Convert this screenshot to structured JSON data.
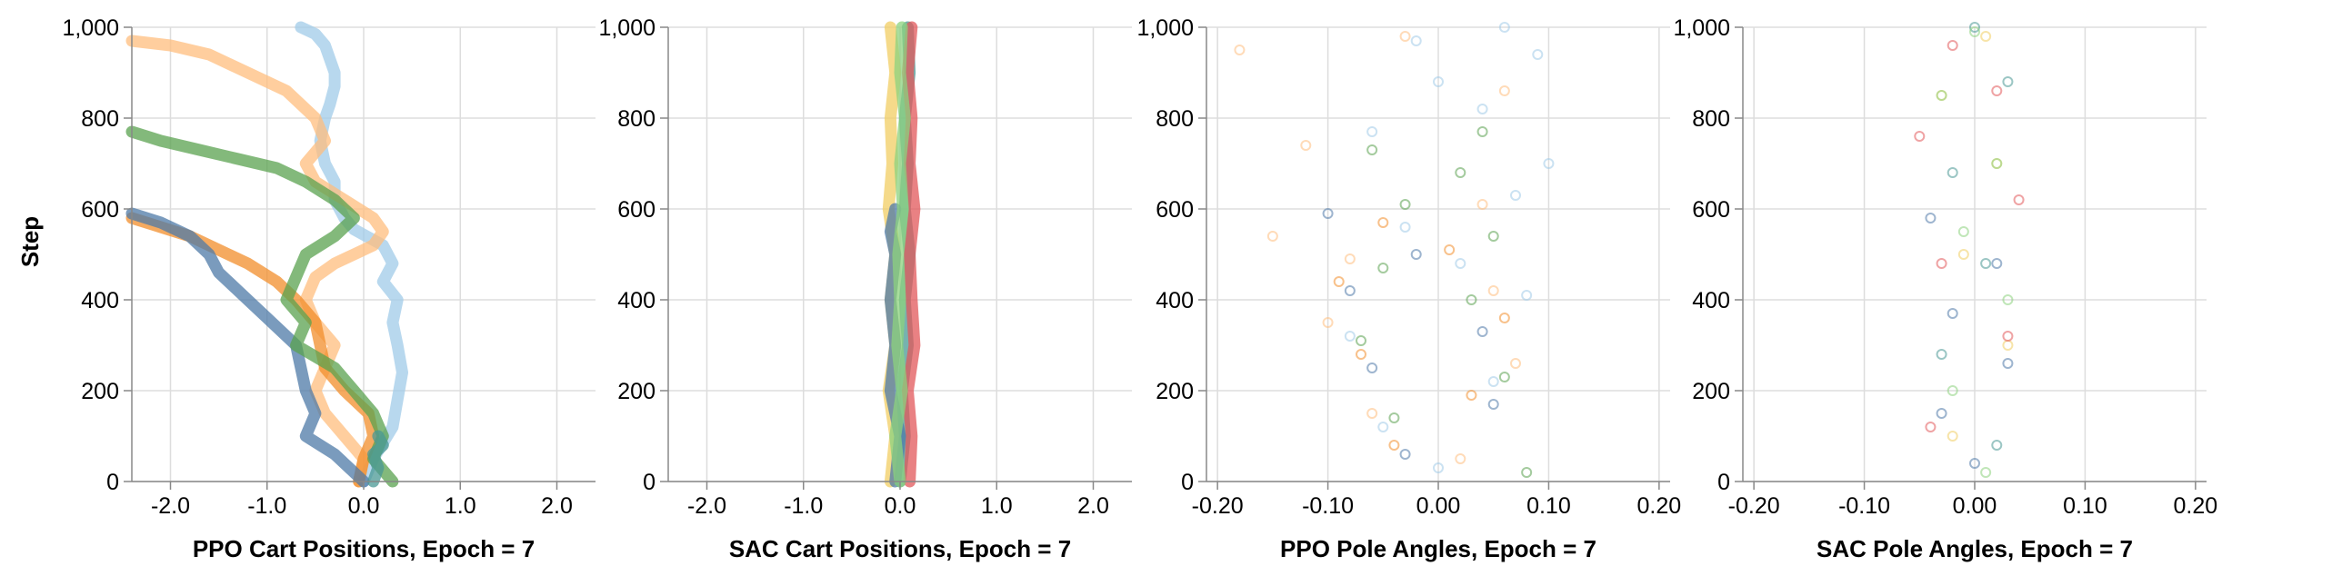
{
  "colors": {
    "blue": "#4e79a7",
    "light_blue": "#a0cbe8",
    "orange": "#f28e2b",
    "light_orange": "#ffbe7d",
    "green": "#59a14f",
    "light_green": "#8cd17d",
    "red": "#e15759",
    "teal": "#499894",
    "yellow": "#f1ce63"
  },
  "y_axis_title": "Step",
  "chart_data": [
    {
      "type": "line",
      "title": "PPO Cart Positions, Epoch = 7",
      "xlabel": "PPO Cart Positions, Epoch = 7",
      "ylabel": "Step",
      "xlim": [
        -2.4,
        2.4
      ],
      "ylim": [
        0,
        1000
      ],
      "x_ticks": [
        "-2.0",
        "-1.0",
        "0.0",
        "1.0",
        "2.0"
      ],
      "x_tick_values": [
        -2,
        -1,
        0,
        1,
        2
      ],
      "y_ticks": [
        "0",
        "200",
        "400",
        "600",
        "800",
        "1,000"
      ],
      "y_tick_values": [
        0,
        200,
        400,
        600,
        800,
        1000
      ],
      "grid": true,
      "series": [
        {
          "color": "#a0cbe8",
          "x": [
            0.0,
            0.1,
            0.3,
            0.35,
            0.4,
            0.35,
            0.3,
            0.35,
            0.2,
            0.3,
            0.2,
            -0.1,
            -0.2,
            -0.3,
            -0.3,
            -0.4,
            -0.45,
            -0.4,
            -0.35,
            -0.3,
            -0.3,
            -0.35,
            -0.4,
            -0.5,
            -0.6,
            -0.65
          ],
          "y": [
            0,
            50,
            120,
            180,
            240,
            300,
            350,
            400,
            440,
            480,
            520,
            555,
            580,
            620,
            660,
            700,
            750,
            800,
            830,
            870,
            900,
            930,
            960,
            985,
            995,
            1000
          ]
        },
        {
          "color": "#ffbe7d",
          "x": [
            -0.05,
            0.0,
            -0.2,
            -0.4,
            -0.5,
            -0.4,
            -0.3,
            -0.5,
            -0.6,
            -0.5,
            -0.3,
            -0.1,
            0.1,
            0.2,
            0.1,
            -0.2,
            -0.5,
            -0.6,
            -0.4,
            -0.5,
            -0.8,
            -1.2,
            -1.6,
            -2.0,
            -2.4
          ],
          "y": [
            0,
            50,
            100,
            150,
            200,
            250,
            300,
            350,
            400,
            450,
            480,
            500,
            520,
            550,
            580,
            620,
            660,
            700,
            750,
            800,
            860,
            900,
            940,
            960,
            970
          ]
        },
        {
          "color": "#f28e2b",
          "x": [
            -0.05,
            0.0,
            0.1,
            0.05,
            -0.2,
            -0.4,
            -0.45,
            -0.5,
            -0.7,
            -0.9,
            -1.2,
            -1.5,
            -1.8,
            -2.1,
            -2.4
          ],
          "y": [
            0,
            50,
            100,
            150,
            200,
            250,
            300,
            350,
            400,
            440,
            480,
            510,
            540,
            560,
            580
          ]
        },
        {
          "color": "#4e79a7",
          "x": [
            0.0,
            -0.3,
            -0.6,
            -0.5,
            -0.6,
            -0.7,
            -1.0,
            -1.2,
            -1.5,
            -1.6,
            -1.8,
            -2.1,
            -2.4
          ],
          "y": [
            0,
            60,
            100,
            150,
            200,
            300,
            360,
            400,
            460,
            500,
            540,
            570,
            590
          ]
        },
        {
          "color": "#59a14f",
          "x": [
            0.3,
            0.1,
            0.2,
            0.1,
            -0.1,
            -0.3,
            -0.7,
            -0.6,
            -0.8,
            -0.7,
            -0.6,
            -0.3,
            -0.1,
            -0.3,
            -0.6,
            -0.9,
            -1.3,
            -1.7,
            -2.1,
            -2.4
          ],
          "y": [
            0,
            50,
            100,
            150,
            200,
            250,
            300,
            350,
            400,
            450,
            500,
            540,
            580,
            620,
            660,
            690,
            710,
            730,
            750,
            770
          ]
        },
        {
          "color": "#499894",
          "x": [
            0.1,
            0.15,
            0.1,
            0.2,
            0.15
          ],
          "y": [
            0,
            30,
            60,
            80,
            100
          ]
        }
      ]
    },
    {
      "type": "line",
      "title": "SAC Cart Positions, Epoch = 7",
      "xlabel": "SAC Cart Positions, Epoch = 7",
      "ylabel": "",
      "xlim": [
        -2.4,
        2.4
      ],
      "ylim": [
        0,
        1000
      ],
      "x_ticks": [
        "-2.0",
        "-1.0",
        "0.0",
        "1.0",
        "2.0"
      ],
      "x_tick_values": [
        -2,
        -1,
        0,
        1,
        2
      ],
      "y_ticks": [
        "0",
        "200",
        "400",
        "600",
        "800",
        "1,000"
      ],
      "y_tick_values": [
        0,
        200,
        400,
        600,
        800,
        1000
      ],
      "grid": true,
      "series": [
        {
          "color": "#f1ce63",
          "x": [
            -0.1,
            -0.05,
            -0.12,
            -0.05,
            -0.1,
            -0.05,
            -0.12,
            -0.08,
            -0.1,
            -0.05,
            -0.1
          ],
          "y": [
            0,
            100,
            200,
            300,
            400,
            500,
            600,
            700,
            800,
            900,
            1000
          ]
        },
        {
          "color": "#499894",
          "x": [
            0.0,
            0.05,
            0.02,
            0.08,
            0.05,
            0.1,
            0.05,
            0.08,
            0.05,
            0.1,
            0.08
          ],
          "y": [
            0,
            100,
            200,
            300,
            400,
            500,
            600,
            700,
            800,
            900,
            1000
          ]
        },
        {
          "color": "#e15759",
          "x": [
            0.1,
            0.12,
            0.08,
            0.15,
            0.12,
            0.1,
            0.15,
            0.1,
            0.12,
            0.08,
            0.12
          ],
          "y": [
            0,
            100,
            200,
            300,
            400,
            500,
            600,
            700,
            800,
            900,
            1000
          ]
        },
        {
          "color": "#4e79a7",
          "x": [
            -0.05,
            0.0,
            -0.1,
            -0.05,
            -0.1,
            -0.05,
            -0.1,
            -0.05
          ],
          "y": [
            0,
            100,
            200,
            300,
            400,
            500,
            550,
            600
          ]
        },
        {
          "color": "#8cd17d",
          "x": [
            0.0,
            -0.05,
            0.02,
            -0.03,
            0.0,
            -0.02,
            0.03,
            0.0,
            0.05,
            0.0,
            0.02
          ],
          "y": [
            0,
            100,
            200,
            300,
            400,
            500,
            600,
            700,
            800,
            900,
            1000
          ]
        }
      ]
    },
    {
      "type": "scatter",
      "title": "PPO Pole Angles, Epoch = 7",
      "xlabel": "PPO Pole Angles, Epoch = 7",
      "ylabel": "",
      "xlim": [
        -0.21,
        0.21
      ],
      "ylim": [
        0,
        1000
      ],
      "x_ticks": [
        "-0.20",
        "-0.10",
        "0.00",
        "0.10",
        "0.20"
      ],
      "x_tick_values": [
        -0.2,
        -0.1,
        0,
        0.1,
        0.2
      ],
      "y_ticks": [
        "0",
        "200",
        "400",
        "600",
        "800",
        "1,000"
      ],
      "y_tick_values": [
        0,
        200,
        400,
        600,
        800,
        1000
      ],
      "grid": true,
      "marker": "open-circle",
      "series": [
        {
          "color": "#a0cbe8",
          "x": [
            0.0,
            -0.05,
            0.05,
            -0.08,
            0.08,
            0.02,
            -0.03,
            0.07,
            0.1,
            -0.06,
            0.04,
            0.0,
            0.09,
            -0.02,
            0.06
          ],
          "y": [
            30,
            120,
            220,
            320,
            410,
            480,
            560,
            630,
            700,
            770,
            820,
            880,
            940,
            970,
            1000
          ]
        },
        {
          "color": "#ffbe7d",
          "x": [
            0.02,
            -0.06,
            0.07,
            -0.1,
            0.05,
            -0.08,
            -0.15,
            0.04,
            -0.12,
            -0.18,
            0.06,
            -0.03
          ],
          "y": [
            50,
            150,
            260,
            350,
            420,
            490,
            540,
            610,
            740,
            950,
            860,
            980
          ]
        },
        {
          "color": "#f28e2b",
          "x": [
            -0.04,
            0.03,
            -0.07,
            0.06,
            -0.09,
            0.01,
            -0.05
          ],
          "y": [
            80,
            190,
            280,
            360,
            440,
            510,
            570
          ]
        },
        {
          "color": "#4e79a7",
          "x": [
            -0.03,
            0.05,
            -0.06,
            0.04,
            -0.08,
            -0.02,
            -0.1
          ],
          "y": [
            60,
            170,
            250,
            330,
            420,
            500,
            590
          ]
        },
        {
          "color": "#59a14f",
          "x": [
            0.08,
            -0.04,
            0.06,
            -0.07,
            0.03,
            -0.05,
            0.05,
            -0.03,
            0.02,
            -0.06,
            0.04
          ],
          "y": [
            20,
            140,
            230,
            310,
            400,
            470,
            540,
            610,
            680,
            730,
            770
          ]
        }
      ]
    },
    {
      "type": "scatter",
      "title": "SAC Pole Angles, Epoch = 7",
      "xlabel": "SAC Pole Angles, Epoch = 7",
      "ylabel": "",
      "xlim": [
        -0.21,
        0.21
      ],
      "ylim": [
        0,
        1000
      ],
      "x_ticks": [
        "-0.20",
        "-0.10",
        "0.00",
        "0.10",
        "0.20"
      ],
      "x_tick_values": [
        -0.2,
        -0.1,
        0,
        0.1,
        0.2
      ],
      "y_ticks": [
        "0",
        "200",
        "400",
        "600",
        "800",
        "1,000"
      ],
      "y_tick_values": [
        0,
        200,
        400,
        600,
        800,
        1000
      ],
      "grid": true,
      "marker": "open-circle",
      "series": [
        {
          "color": "#f1ce63",
          "x": [
            -0.02,
            0.03,
            -0.01,
            0.02,
            -0.03,
            0.01
          ],
          "y": [
            100,
            300,
            500,
            700,
            850,
            980
          ]
        },
        {
          "color": "#499894",
          "x": [
            0.02,
            -0.03,
            0.01,
            -0.02,
            0.03,
            0.0
          ],
          "y": [
            80,
            280,
            480,
            680,
            880,
            1000
          ]
        },
        {
          "color": "#e15759",
          "x": [
            -0.04,
            0.03,
            -0.03,
            0.04,
            -0.05,
            0.02,
            -0.02
          ],
          "y": [
            120,
            320,
            480,
            620,
            760,
            860,
            960
          ]
        },
        {
          "color": "#4e79a7",
          "x": [
            0.0,
            -0.03,
            0.03,
            -0.02,
            0.02,
            -0.04
          ],
          "y": [
            40,
            150,
            260,
            370,
            480,
            580
          ]
        },
        {
          "color": "#8cd17d",
          "x": [
            0.01,
            -0.02,
            0.03,
            -0.01,
            0.02,
            -0.03,
            0.0
          ],
          "y": [
            20,
            200,
            400,
            550,
            700,
            850,
            990
          ]
        }
      ]
    }
  ]
}
